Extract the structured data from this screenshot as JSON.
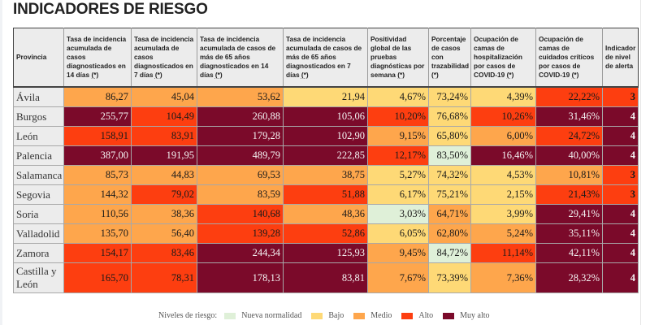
{
  "page": {
    "title": "INDICADORES DE RIESGO"
  },
  "colors": {
    "nueva": "#dff0d8",
    "bajo": "#fed976",
    "medio": "#fea64c",
    "alto": "#fd3e10",
    "muyalto": "#7b0a2a"
  },
  "table": {
    "headers": [
      {
        "text": "Provincia",
        "note": ""
      },
      {
        "text": "Tasa de incidencia acumulada de casos diagnosticados en 14 días ",
        "note": "(*)"
      },
      {
        "text": "Tasa de incidencia acumulada de casos diagnosticados en 7 días ",
        "note": "(*)"
      },
      {
        "text": "Tasa de incidencia acumulada de casos de más de 65 años diagnosticados en 14 días ",
        "note": "(*)"
      },
      {
        "text": "Tasa de incidencia acumulada de casos de más de 65 años diagnosticados en 7 días ",
        "note": "(*)"
      },
      {
        "text": "Positividad global de las pruebas diagnósticas por semana ",
        "note": "(*)"
      },
      {
        "text": "Porcentaje de casos con trazabilidad ",
        "note": "(*)"
      },
      {
        "text": "Ocupación de camas de hospitalización por casos de COVID-19 ",
        "note": "(*)"
      },
      {
        "text": "Ocupación de camas de cuidados críticos por casos de COVID-19 ",
        "note": "(*)"
      },
      {
        "text": "Indicador de nivel de alerta",
        "note": ""
      }
    ],
    "rows": [
      {
        "provincia": "Ávila",
        "cells": [
          {
            "v": "86,27",
            "lvl": "medio"
          },
          {
            "v": "45,04",
            "lvl": "medio"
          },
          {
            "v": "53,62",
            "lvl": "medio"
          },
          {
            "v": "21,94",
            "lvl": "bajo"
          },
          {
            "v": "4,67%",
            "lvl": "bajo"
          },
          {
            "v": "73,24%",
            "lvl": "bajo"
          },
          {
            "v": "4,39%",
            "lvl": "bajo"
          },
          {
            "v": "22,22%",
            "lvl": "alto"
          },
          {
            "v": "3",
            "lvl": "alto"
          }
        ]
      },
      {
        "provincia": "Burgos",
        "cells": [
          {
            "v": "255,77",
            "lvl": "muyalto"
          },
          {
            "v": "104,49",
            "lvl": "alto"
          },
          {
            "v": "260,88",
            "lvl": "muyalto"
          },
          {
            "v": "105,06",
            "lvl": "muyalto"
          },
          {
            "v": "10,20%",
            "lvl": "alto"
          },
          {
            "v": "76,68%",
            "lvl": "bajo"
          },
          {
            "v": "10,26%",
            "lvl": "alto"
          },
          {
            "v": "31,46%",
            "lvl": "muyalto"
          },
          {
            "v": "4",
            "lvl": "muyalto"
          }
        ]
      },
      {
        "provincia": "León",
        "cells": [
          {
            "v": "158,91",
            "lvl": "alto"
          },
          {
            "v": "83,91",
            "lvl": "alto"
          },
          {
            "v": "179,28",
            "lvl": "muyalto"
          },
          {
            "v": "102,90",
            "lvl": "muyalto"
          },
          {
            "v": "9,15%",
            "lvl": "medio"
          },
          {
            "v": "65,80%",
            "lvl": "bajo"
          },
          {
            "v": "6,00%",
            "lvl": "medio"
          },
          {
            "v": "24,72%",
            "lvl": "alto"
          },
          {
            "v": "4",
            "lvl": "muyalto"
          }
        ]
      },
      {
        "provincia": "Palencia",
        "cells": [
          {
            "v": "387,00",
            "lvl": "muyalto"
          },
          {
            "v": "191,95",
            "lvl": "muyalto"
          },
          {
            "v": "489,79",
            "lvl": "muyalto"
          },
          {
            "v": "222,85",
            "lvl": "muyalto"
          },
          {
            "v": "12,17%",
            "lvl": "alto"
          },
          {
            "v": "83,50%",
            "lvl": "nueva"
          },
          {
            "v": "16,46%",
            "lvl": "muyalto"
          },
          {
            "v": "40,00%",
            "lvl": "muyalto"
          },
          {
            "v": "4",
            "lvl": "muyalto"
          }
        ]
      },
      {
        "provincia": "Salamanca",
        "cells": [
          {
            "v": "85,73",
            "lvl": "medio"
          },
          {
            "v": "44,83",
            "lvl": "medio"
          },
          {
            "v": "69,53",
            "lvl": "medio"
          },
          {
            "v": "38,75",
            "lvl": "medio"
          },
          {
            "v": "5,27%",
            "lvl": "bajo"
          },
          {
            "v": "74,32%",
            "lvl": "bajo"
          },
          {
            "v": "4,53%",
            "lvl": "bajo"
          },
          {
            "v": "10,81%",
            "lvl": "medio"
          },
          {
            "v": "3",
            "lvl": "alto"
          }
        ]
      },
      {
        "provincia": "Segovia",
        "cells": [
          {
            "v": "144,32",
            "lvl": "medio"
          },
          {
            "v": "79,02",
            "lvl": "alto"
          },
          {
            "v": "83,59",
            "lvl": "medio"
          },
          {
            "v": "51,88",
            "lvl": "alto"
          },
          {
            "v": "6,17%",
            "lvl": "bajo"
          },
          {
            "v": "75,21%",
            "lvl": "bajo"
          },
          {
            "v": "2,15%",
            "lvl": "bajo"
          },
          {
            "v": "21,43%",
            "lvl": "alto"
          },
          {
            "v": "3",
            "lvl": "alto"
          }
        ]
      },
      {
        "provincia": "Soria",
        "cells": [
          {
            "v": "110,56",
            "lvl": "medio"
          },
          {
            "v": "38,36",
            "lvl": "medio"
          },
          {
            "v": "140,68",
            "lvl": "alto"
          },
          {
            "v": "48,36",
            "lvl": "medio"
          },
          {
            "v": "3,03%",
            "lvl": "nueva"
          },
          {
            "v": "64,71%",
            "lvl": "medio"
          },
          {
            "v": "3,99%",
            "lvl": "bajo"
          },
          {
            "v": "29,41%",
            "lvl": "muyalto"
          },
          {
            "v": "4",
            "lvl": "muyalto"
          }
        ]
      },
      {
        "provincia": "Valladolid",
        "cells": [
          {
            "v": "135,70",
            "lvl": "medio"
          },
          {
            "v": "56,40",
            "lvl": "medio"
          },
          {
            "v": "139,28",
            "lvl": "alto"
          },
          {
            "v": "52,86",
            "lvl": "alto"
          },
          {
            "v": "6,05%",
            "lvl": "bajo"
          },
          {
            "v": "62,80%",
            "lvl": "medio"
          },
          {
            "v": "5,24%",
            "lvl": "medio"
          },
          {
            "v": "35,11%",
            "lvl": "muyalto"
          },
          {
            "v": "4",
            "lvl": "muyalto"
          }
        ]
      },
      {
        "provincia": "Zamora",
        "cells": [
          {
            "v": "154,17",
            "lvl": "alto"
          },
          {
            "v": "83,46",
            "lvl": "alto"
          },
          {
            "v": "244,34",
            "lvl": "muyalto"
          },
          {
            "v": "125,93",
            "lvl": "muyalto"
          },
          {
            "v": "9,45%",
            "lvl": "medio"
          },
          {
            "v": "84,72%",
            "lvl": "nueva"
          },
          {
            "v": "11,14%",
            "lvl": "alto"
          },
          {
            "v": "42,11%",
            "lvl": "muyalto"
          },
          {
            "v": "4",
            "lvl": "muyalto"
          }
        ]
      },
      {
        "provincia": "Castilla y León",
        "cells": [
          {
            "v": "165,70",
            "lvl": "alto"
          },
          {
            "v": "78,31",
            "lvl": "alto"
          },
          {
            "v": "178,13",
            "lvl": "muyalto"
          },
          {
            "v": "83,81",
            "lvl": "muyalto"
          },
          {
            "v": "7,67%",
            "lvl": "medio"
          },
          {
            "v": "73,39%",
            "lvl": "bajo"
          },
          {
            "v": "7,36%",
            "lvl": "medio"
          },
          {
            "v": "28,32%",
            "lvl": "muyalto"
          },
          {
            "v": "4",
            "lvl": "muyalto"
          }
        ]
      }
    ]
  },
  "legend": {
    "label": "Niveles de riesgo:",
    "items": [
      {
        "key": "nueva",
        "label": "Nueva normalidad"
      },
      {
        "key": "bajo",
        "label": "Bajo"
      },
      {
        "key": "medio",
        "label": "Medio"
      },
      {
        "key": "alto",
        "label": "Alto"
      },
      {
        "key": "muyalto",
        "label": "Muy alto"
      }
    ]
  }
}
